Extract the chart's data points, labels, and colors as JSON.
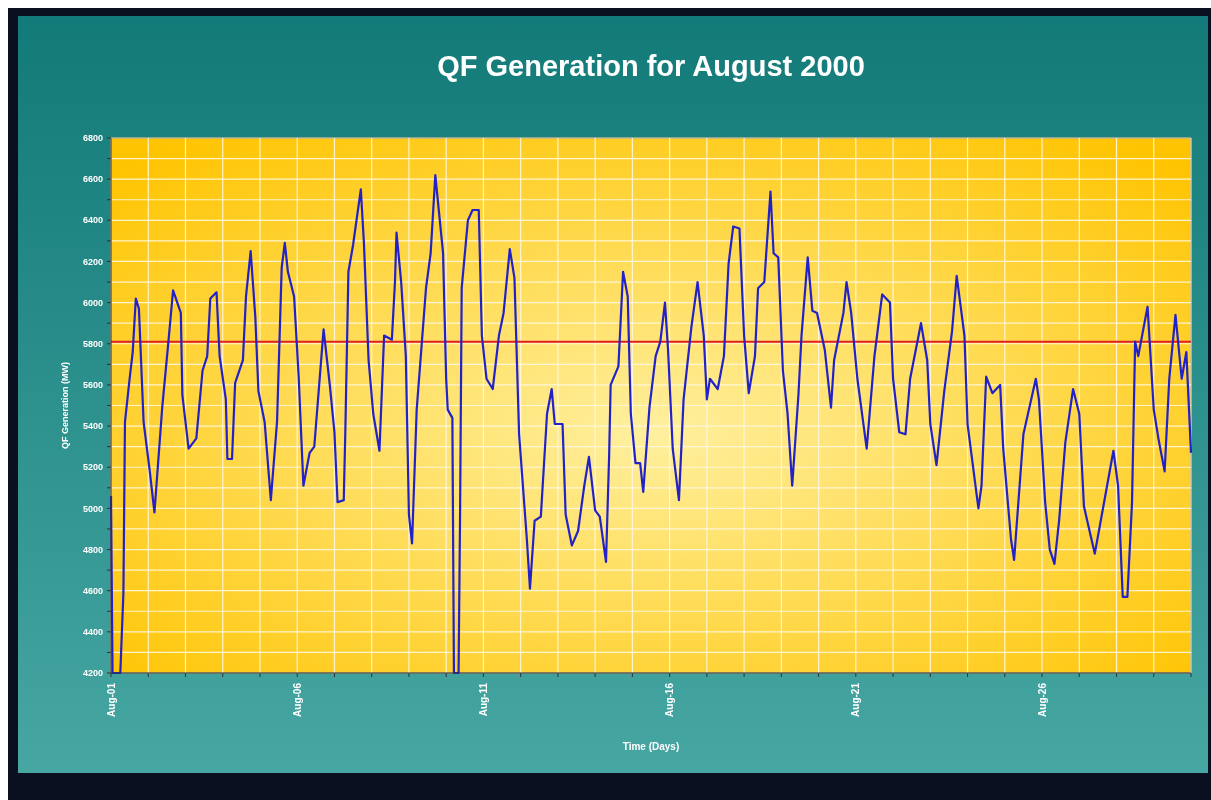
{
  "chart_data": {
    "type": "line",
    "title": "QF Generation for August 2000",
    "xlabel": "Time (Days)",
    "ylabel": "QF Generation (MW)",
    "xlim": [
      "2000-08-01T00:00",
      "2000-08-30T00:00"
    ],
    "xticks": [
      {
        "value": "2000-08-01",
        "label": "Aug-01"
      },
      {
        "value": "2000-08-02",
        "label": null
      },
      {
        "value": "2000-08-03",
        "label": null
      },
      {
        "value": "2000-08-04",
        "label": null
      },
      {
        "value": "2000-08-05",
        "label": null
      },
      {
        "value": "2000-08-06",
        "label": "Aug-06"
      },
      {
        "value": "2000-08-07",
        "label": null
      },
      {
        "value": "2000-08-08",
        "label": null
      },
      {
        "value": "2000-08-09",
        "label": null
      },
      {
        "value": "2000-08-10",
        "label": null
      },
      {
        "value": "2000-08-11",
        "label": "Aug-11"
      },
      {
        "value": "2000-08-12",
        "label": null
      },
      {
        "value": "2000-08-13",
        "label": null
      },
      {
        "value": "2000-08-14",
        "label": null
      },
      {
        "value": "2000-08-15",
        "label": null
      },
      {
        "value": "2000-08-16",
        "label": "Aug-16"
      },
      {
        "value": "2000-08-17",
        "label": null
      },
      {
        "value": "2000-08-18",
        "label": null
      },
      {
        "value": "2000-08-19",
        "label": null
      },
      {
        "value": "2000-08-20",
        "label": null
      },
      {
        "value": "2000-08-21",
        "label": "Aug-21"
      },
      {
        "value": "2000-08-22",
        "label": null
      },
      {
        "value": "2000-08-23",
        "label": null
      },
      {
        "value": "2000-08-24",
        "label": null
      },
      {
        "value": "2000-08-25",
        "label": null
      },
      {
        "value": "2000-08-26",
        "label": "Aug-26"
      },
      {
        "value": "2000-08-27",
        "label": null
      },
      {
        "value": "2000-08-28",
        "label": null
      },
      {
        "value": "2000-08-29",
        "label": null
      },
      {
        "value": "2000-08-30",
        "label": null
      }
    ],
    "ylim": [
      4200,
      6800
    ],
    "yticks": [
      4200,
      {
        "value": 4300,
        "label": null
      },
      4400,
      {
        "value": 4500,
        "label": null
      },
      4600,
      {
        "value": 4700,
        "label": null
      },
      4800,
      {
        "value": 4900,
        "label": null
      },
      5000,
      {
        "value": 5100,
        "label": null
      },
      5200,
      {
        "value": 5300,
        "label": null
      },
      5400,
      {
        "value": 5500,
        "label": null
      },
      5600,
      {
        "value": 5700,
        "label": null
      },
      5800,
      {
        "value": 5900,
        "label": null
      },
      6000,
      {
        "value": 6100,
        "label": null
      },
      6200,
      {
        "value": 6300,
        "label": null
      },
      6400,
      {
        "value": 6500,
        "label": null
      },
      6600,
      {
        "value": 6700,
        "label": null
      },
      6800
    ],
    "grid": true,
    "ref_lines": [
      {
        "axis": "y",
        "value": 5810,
        "color": "#e02020"
      }
    ],
    "x": [
      "2000-08-01T00:00",
      "2000-08-01T01:00",
      "2000-08-01T06:00",
      "2000-08-01T08:00",
      "2000-08-01T09:00",
      "2000-08-01T12:00",
      "2000-08-01T14:00",
      "2000-08-01T16:00",
      "2000-08-01T18:00",
      "2000-08-01T21:00",
      "2000-08-02T01:00",
      "2000-08-02T04:00",
      "2000-08-02T09:00",
      "2000-08-02T13:00",
      "2000-08-02T16:00",
      "2000-08-02T21:00",
      "2000-08-02T22:00",
      "2000-08-03T02:00",
      "2000-08-03T07:00",
      "2000-08-03T11:00",
      "2000-08-03T14:00",
      "2000-08-03T16:00",
      "2000-08-03T20:00",
      "2000-08-03T22:00",
      "2000-08-04T02:00",
      "2000-08-04T03:00",
      "2000-08-04T06:00",
      "2000-08-04T08:00",
      "2000-08-04T13:00",
      "2000-08-04T15:00",
      "2000-08-04T18:00",
      "2000-08-04T21:00",
      "2000-08-04T23:00",
      "2000-08-05T03:00",
      "2000-08-05T07:00",
      "2000-08-05T11:00",
      "2000-08-05T14:00",
      "2000-08-05T16:00",
      "2000-08-05T18:00",
      "2000-08-05T22:00",
      "2000-08-06T01:00",
      "2000-08-06T04:00",
      "2000-08-06T08:00",
      "2000-08-06T11:00",
      "2000-08-06T17:00",
      "2000-08-06T21:00",
      "2000-08-07T00:00",
      "2000-08-07T02:00",
      "2000-08-07T06:00",
      "2000-08-07T07:00",
      "2000-08-07T09:00",
      "2000-08-07T12:00",
      "2000-08-07T17:00",
      "2000-08-07T19:00",
      "2000-08-07T22:00",
      "2000-08-08T01:00",
      "2000-08-08T05:00",
      "2000-08-08T08:00",
      "2000-08-08T13:00",
      "2000-08-08T15:00",
      "2000-08-08T16:00",
      "2000-08-08T19:00",
      "2000-08-08T22:00",
      "2000-08-09T00:00",
      "2000-08-09T02:00",
      "2000-08-09T05:00",
      "2000-08-09T11:00",
      "2000-08-09T14:00",
      "2000-08-09T17:00",
      "2000-08-09T22:00",
      "2000-08-10T00:00",
      "2000-08-10T01:00",
      "2000-08-10T04:00",
      "2000-08-10T05:00",
      "2000-08-10T08:00",
      "2000-08-10T09:00",
      "2000-08-10T10:00",
      "2000-08-10T14:00",
      "2000-08-10T17:00",
      "2000-08-10T21:00",
      "2000-08-10T23:00",
      "2000-08-11T02:00",
      "2000-08-11T06:00",
      "2000-08-11T10:00",
      "2000-08-11T13:00",
      "2000-08-11T17:00",
      "2000-08-11T20:00",
      "2000-08-11T23:00",
      "2000-08-12T04:00",
      "2000-08-12T06:00",
      "2000-08-12T09:00",
      "2000-08-12T13:00",
      "2000-08-12T17:00",
      "2000-08-12T20:00",
      "2000-08-12T22:00",
      "2000-08-13T03:00",
      "2000-08-13T05:00",
      "2000-08-13T09:00",
      "2000-08-13T13:00",
      "2000-08-13T17:00",
      "2000-08-13T20:00",
      "2000-08-14T00:00",
      "2000-08-14T03:00",
      "2000-08-14T07:00",
      "2000-08-14T09:00",
      "2000-08-14T10:00",
      "2000-08-14T15:00",
      "2000-08-14T18:00",
      "2000-08-14T21:00",
      "2000-08-14T23:00",
      "2000-08-15T02:00",
      "2000-08-15T05:00",
      "2000-08-15T07:00",
      "2000-08-15T11:00",
      "2000-08-15T15:00",
      "2000-08-15T18:00",
      "2000-08-15T21:00",
      "2000-08-15T23:00",
      "2000-08-16T02:00",
      "2000-08-16T06:00",
      "2000-08-16T09:00",
      "2000-08-16T14:00",
      "2000-08-16T18:00",
      "2000-08-16T22:00",
      "2000-08-17T00:00",
      "2000-08-17T02:00",
      "2000-08-17T07:00",
      "2000-08-17T11:00",
      "2000-08-17T14:00",
      "2000-08-17T17:00",
      "2000-08-17T21:00",
      "2000-08-18T00:00",
      "2000-08-18T03:00",
      "2000-08-18T07:00",
      "2000-08-18T09:00",
      "2000-08-18T13:00",
      "2000-08-18T17:00",
      "2000-08-18T19:00",
      "2000-08-18T22:00",
      "2000-08-19T01:00",
      "2000-08-19T04:00",
      "2000-08-19T07:00",
      "2000-08-19T11:00",
      "2000-08-19T13:00",
      "2000-08-19T17:00",
      "2000-08-19T20:00",
      "2000-08-19T23:00",
      "2000-08-20T04:00",
      "2000-08-20T08:00",
      "2000-08-20T10:00",
      "2000-08-20T16:00",
      "2000-08-20T18:00",
      "2000-08-20T21:00",
      "2000-08-21T01:00",
      "2000-08-21T07:00",
      "2000-08-21T12:00",
      "2000-08-21T17:00",
      "2000-08-21T22:00",
      "2000-08-22T00:00",
      "2000-08-22T04:00",
      "2000-08-22T08:00",
      "2000-08-22T11:00",
      "2000-08-22T18:00",
      "2000-08-22T22:00",
      "2000-08-23T00:00",
      "2000-08-23T04:00",
      "2000-08-23T09:00",
      "2000-08-23T14:00",
      "2000-08-23T17:00",
      "2000-08-23T22:00",
      "2000-08-24T00:00",
      "2000-08-24T07:00",
      "2000-08-24T09:00",
      "2000-08-24T12:00",
      "2000-08-24T16:00",
      "2000-08-24T21:00",
      "2000-08-24T23:00",
      "2000-08-25T04:00",
      "2000-08-25T06:00",
      "2000-08-25T12:00",
      "2000-08-25T20:00",
      "2000-08-25T22:00",
      "2000-08-26T02:00",
      "2000-08-26T05:00",
      "2000-08-26T08:00",
      "2000-08-26T11:00",
      "2000-08-26T15:00",
      "2000-08-26T20:00",
      "2000-08-27T00:00",
      "2000-08-27T03:00",
      "2000-08-27T10:00",
      "2000-08-27T16:00",
      "2000-08-27T22:00",
      "2000-08-28T01:00",
      "2000-08-28T04:00",
      "2000-08-28T07:00",
      "2000-08-28T10:00",
      "2000-08-28T12:00",
      "2000-08-28T14:00",
      "2000-08-28T20:00",
      "2000-08-29T00:00",
      "2000-08-29T03:00",
      "2000-08-29T07:00",
      "2000-08-29T10:00",
      "2000-08-29T14:00",
      "2000-08-29T18:00",
      "2000-08-29T21:00",
      "2000-08-30T00:00"
    ],
    "series": [
      {
        "color": "#2222c8",
        "values": [
          5060,
          4200,
          4200,
          4590,
          5420,
          5630,
          5760,
          6020,
          5970,
          5420,
          5180,
          4980,
          5490,
          5810,
          6060,
          5950,
          5550,
          5290,
          5340,
          5670,
          5740,
          6020,
          6050,
          5740,
          5530,
          5240,
          5240,
          5610,
          5720,
          6030,
          6250,
          5930,
          5570,
          5420,
          5040,
          5420,
          6170,
          6290,
          6150,
          6030,
          5630,
          5110,
          5270,
          5300,
          5870,
          5600,
          5370,
          5030,
          5040,
          5370,
          6150,
          6280,
          6550,
          6290,
          5720,
          5460,
          5280,
          5840,
          5820,
          6100,
          6340,
          6100,
          5740,
          4970,
          4830,
          5480,
          6070,
          6240,
          6620,
          6240,
          5630,
          5480,
          5440,
          4200,
          4200,
          5010,
          6070,
          6400,
          6450,
          6450,
          5840,
          5630,
          5580,
          5840,
          5950,
          6260,
          6120,
          5360,
          4850,
          4610,
          4940,
          4960,
          5460,
          5580,
          5410,
          5410,
          4970,
          4820,
          4890,
          5110,
          5250,
          4990,
          4960,
          4740,
          5250,
          5600,
          5690,
          6150,
          6030,
          5460,
          5220,
          5220,
          5080,
          5490,
          5740,
          5810,
          6000,
          5770,
          5290,
          5040,
          5530,
          5880,
          6100,
          5840,
          5530,
          5630,
          5580,
          5740,
          6190,
          6370,
          6360,
          5840,
          5560,
          5740,
          6070,
          6100,
          6540,
          6240,
          6220,
          5670,
          5460,
          5110,
          5550,
          5840,
          6220,
          5960,
          5950,
          5770,
          5490,
          5720,
          5950,
          6100,
          5950,
          5630,
          5290,
          5740,
          6040,
          6000,
          5630,
          5370,
          5360,
          5630,
          5900,
          5720,
          5410,
          5210,
          5570,
          5860,
          6130,
          5840,
          5410,
          5000,
          5110,
          5640,
          5560,
          5600,
          5290,
          4850,
          4750,
          5360,
          5630,
          5530,
          5030,
          4800,
          4730,
          4940,
          5320,
          5580,
          5460,
          5010,
          4780,
          5030,
          5280,
          5110,
          4570,
          4570,
          5030,
          5810,
          5740,
          5980,
          5480,
          5340,
          5180,
          5630,
          5940,
          5630,
          5760,
          5270
        ]
      }
    ]
  }
}
